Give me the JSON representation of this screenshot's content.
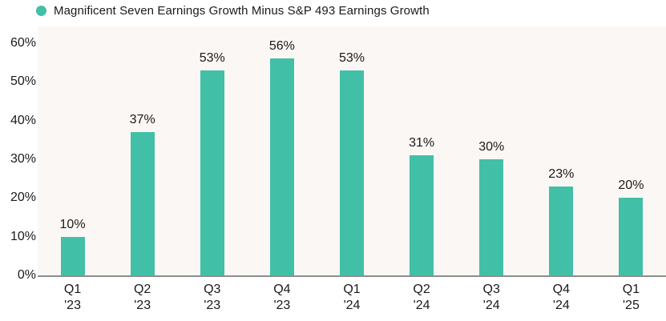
{
  "legend": {
    "label": "Magnificent Seven Earnings Growth Minus S&P 493 Earnings Growth"
  },
  "chart_data": {
    "type": "bar",
    "title": "Magnificent Seven Earnings Growth Minus S&P 493 Earnings Growth",
    "categories": [
      "Q1 '23",
      "Q2 '23",
      "Q3 '23",
      "Q4 '23",
      "Q1 '24",
      "Q2 '24",
      "Q3 '24",
      "Q4 '24",
      "Q1 '25"
    ],
    "category_lines": [
      [
        "Q1",
        "'23"
      ],
      [
        "Q2",
        "'23"
      ],
      [
        "Q3",
        "'23"
      ],
      [
        "Q4",
        "'23"
      ],
      [
        "Q1",
        "'24"
      ],
      [
        "Q2",
        "'24"
      ],
      [
        "Q3",
        "'24"
      ],
      [
        "Q4",
        "'24"
      ],
      [
        "Q1",
        "'25"
      ]
    ],
    "values": [
      10,
      37,
      53,
      56,
      53,
      31,
      30,
      23,
      20
    ],
    "value_labels": [
      "10%",
      "37%",
      "53%",
      "56%",
      "53%",
      "31%",
      "30%",
      "23%",
      "20%"
    ],
    "y_ticks": [
      0,
      10,
      20,
      30,
      40,
      50,
      60
    ],
    "y_tick_labels": [
      "0%",
      "10%",
      "20%",
      "30%",
      "40%",
      "50%",
      "60%"
    ],
    "ylim": [
      0,
      64.35
    ],
    "xlabel": "",
    "ylabel": "",
    "grid": false,
    "legend_position": "top-left",
    "bar_color": "#42bfa7",
    "plot_bg_color": "#fbf7f4",
    "axis_line_color": "#8e8e8e",
    "text_color": "#1a1a1a"
  }
}
